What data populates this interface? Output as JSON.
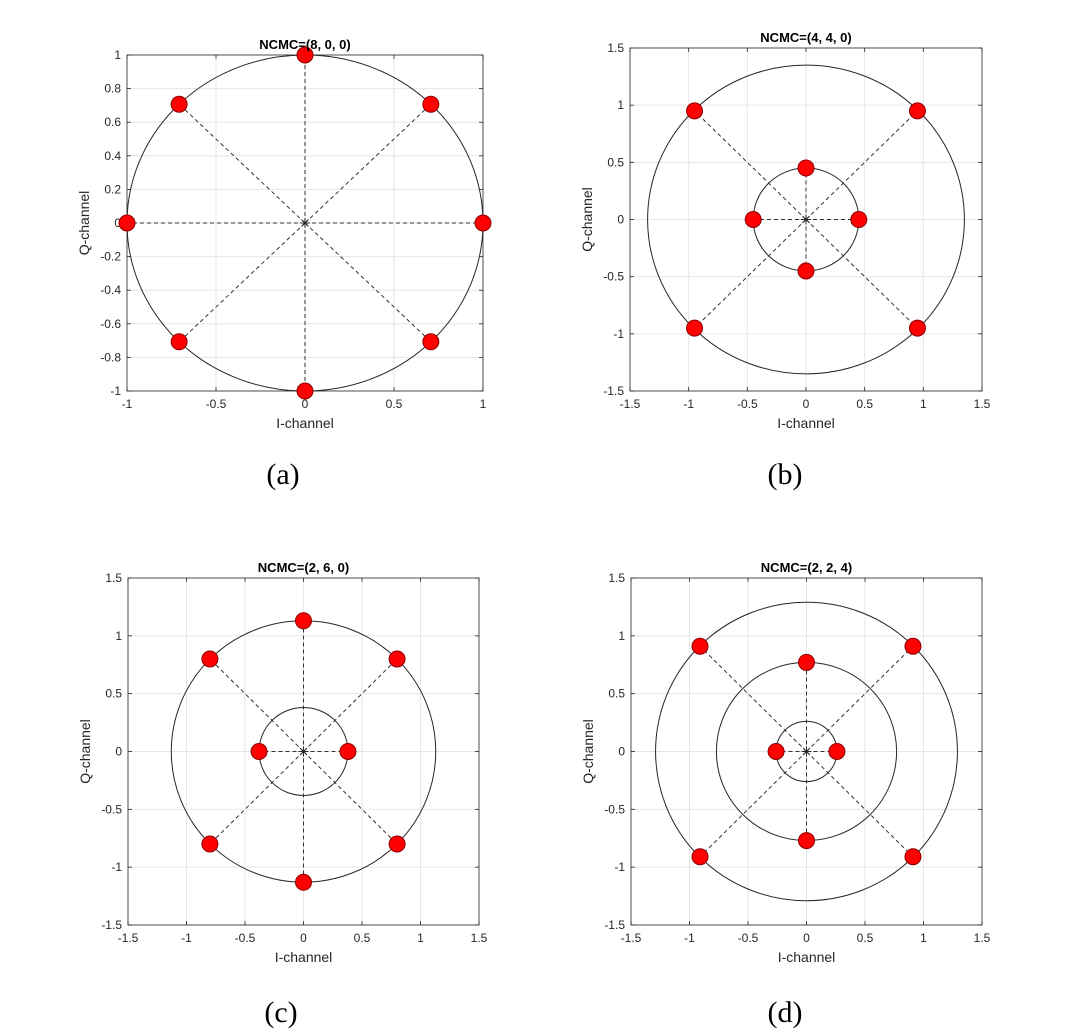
{
  "colors": {
    "marker": "#ff0000",
    "marker_edge": "#8b0000",
    "ring": "#262626",
    "dash": "#333333",
    "grid": "#e6e6e6",
    "axes": "#262626"
  },
  "chart_data": [
    {
      "type": "scatter",
      "title": "NCMC=(8, 0, 0)",
      "xlabel": "I-channel",
      "ylabel": "Q-channel",
      "caption": "(a)",
      "xlim": [
        -1,
        1
      ],
      "ylim": [
        -1,
        1
      ],
      "xticks": [
        -1,
        -0.5,
        0,
        0.5,
        1
      ],
      "xtick_labels": [
        "-1",
        "-0.5",
        "0",
        "0.5",
        "1"
      ],
      "yticks": [
        -1,
        -0.8,
        -0.6,
        -0.4,
        -0.2,
        0,
        0.2,
        0.4,
        0.6,
        0.8,
        1
      ],
      "ytick_labels": [
        "-1",
        "-0.8",
        "-0.6",
        "-0.4",
        "-0.2",
        "0",
        "0.2",
        "0.4",
        "0.6",
        "0.8",
        "1"
      ],
      "grid": true,
      "rings": [
        1.0
      ],
      "points": [
        {
          "x": 1,
          "y": 0
        },
        {
          "x": 0.707,
          "y": 0.707
        },
        {
          "x": 0,
          "y": 1
        },
        {
          "x": -0.707,
          "y": 0.707
        },
        {
          "x": -1,
          "y": 0
        },
        {
          "x": -0.707,
          "y": -0.707
        },
        {
          "x": 0,
          "y": -1
        },
        {
          "x": 0.707,
          "y": -0.707
        }
      ]
    },
    {
      "type": "scatter",
      "title": "NCMC=(4, 4, 0)",
      "xlabel": "I-channel",
      "ylabel": "Q-channel",
      "caption": "(b)",
      "xlim": [
        -1.5,
        1.5
      ],
      "ylim": [
        -1.5,
        1.5
      ],
      "xticks": [
        -1.5,
        -1,
        -0.5,
        0,
        0.5,
        1,
        1.5
      ],
      "xtick_labels": [
        "-1.5",
        "-1",
        "-0.5",
        "0",
        "0.5",
        "1",
        "1.5"
      ],
      "yticks": [
        -1.5,
        -1,
        -0.5,
        0,
        0.5,
        1,
        1.5
      ],
      "ytick_labels": [
        "-1.5",
        "-1",
        "-0.5",
        "0",
        "0.5",
        "1",
        "1.5"
      ],
      "grid": true,
      "rings": [
        0.45,
        1.35
      ],
      "points": [
        {
          "x": 0.45,
          "y": 0
        },
        {
          "x": 0,
          "y": 0.45
        },
        {
          "x": -0.45,
          "y": 0
        },
        {
          "x": 0,
          "y": -0.45
        },
        {
          "x": 0.95,
          "y": 0.95
        },
        {
          "x": -0.95,
          "y": 0.95
        },
        {
          "x": -0.95,
          "y": -0.95
        },
        {
          "x": 0.95,
          "y": -0.95
        }
      ]
    },
    {
      "type": "scatter",
      "title": "NCMC=(2, 6, 0)",
      "xlabel": "I-channel",
      "ylabel": "Q-channel",
      "caption": "(c)",
      "xlim": [
        -1.5,
        1.5
      ],
      "ylim": [
        -1.5,
        1.5
      ],
      "xticks": [
        -1.5,
        -1,
        -0.5,
        0,
        0.5,
        1,
        1.5
      ],
      "xtick_labels": [
        "-1.5",
        "-1",
        "-0.5",
        "0",
        "0.5",
        "1",
        "1.5"
      ],
      "yticks": [
        -1.5,
        -1,
        -0.5,
        0,
        0.5,
        1,
        1.5
      ],
      "ytick_labels": [
        "-1.5",
        "-1",
        "-0.5",
        "0",
        "0.5",
        "1",
        "1.5"
      ],
      "grid": true,
      "rings": [
        0.38,
        1.13
      ],
      "points": [
        {
          "x": 0.38,
          "y": 0
        },
        {
          "x": -0.38,
          "y": 0
        },
        {
          "x": 0,
          "y": 1.13
        },
        {
          "x": 0.8,
          "y": 0.8
        },
        {
          "x": -0.8,
          "y": 0.8
        },
        {
          "x": 0,
          "y": -1.13
        },
        {
          "x": -0.8,
          "y": -0.8
        },
        {
          "x": 0.8,
          "y": -0.8
        }
      ]
    },
    {
      "type": "scatter",
      "title": "NCMC=(2, 2, 4)",
      "xlabel": "I-channel",
      "ylabel": "Q-channel",
      "caption": "(d)",
      "xlim": [
        -1.5,
        1.5
      ],
      "ylim": [
        -1.5,
        1.5
      ],
      "xticks": [
        -1.5,
        -1,
        -0.5,
        0,
        0.5,
        1,
        1.5
      ],
      "xtick_labels": [
        "-1.5",
        "-1",
        "-0.5",
        "0",
        "0.5",
        "1",
        "1.5"
      ],
      "yticks": [
        -1.5,
        -1,
        -0.5,
        0,
        0.5,
        1,
        1.5
      ],
      "ytick_labels": [
        "-1.5",
        "-1",
        "-0.5",
        "0",
        "0.5",
        "1",
        "1.5"
      ],
      "grid": true,
      "rings": [
        0.26,
        0.77,
        1.29
      ],
      "points": [
        {
          "x": 0.26,
          "y": 0
        },
        {
          "x": -0.26,
          "y": 0
        },
        {
          "x": 0,
          "y": 0.77
        },
        {
          "x": 0,
          "y": -0.77
        },
        {
          "x": 0.91,
          "y": 0.91
        },
        {
          "x": -0.91,
          "y": 0.91
        },
        {
          "x": -0.91,
          "y": -0.91
        },
        {
          "x": 0.91,
          "y": -0.91
        }
      ]
    }
  ]
}
